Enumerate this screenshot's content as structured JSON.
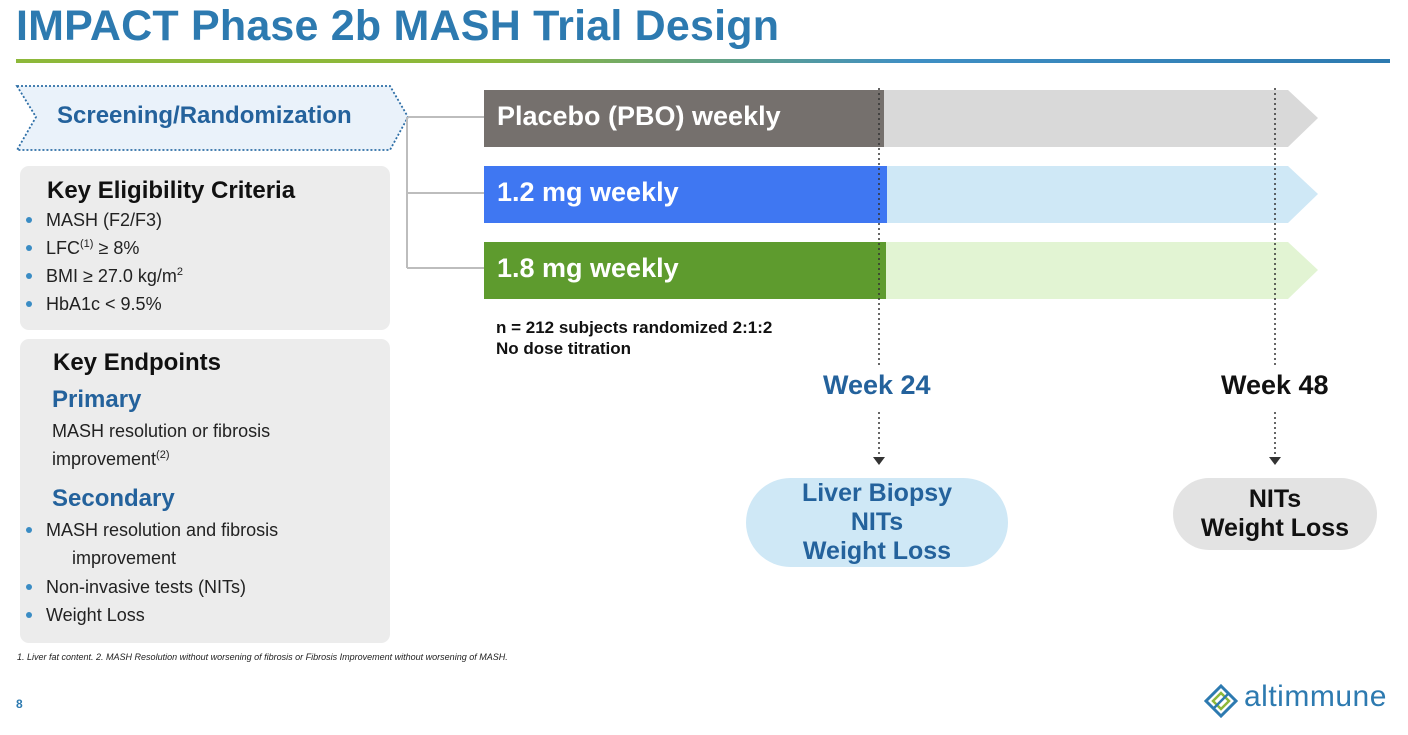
{
  "title": "IMPACT Phase 2b MASH Trial Design",
  "screening": {
    "label": "Screening/Randomization"
  },
  "eligibility": {
    "heading": "Key Eligibility Criteria",
    "items": [
      "MASH (F2/F3)",
      "LFC",
      "≥ 8%",
      "BMI ≥ 27.0 kg/m",
      "HbA1c < 9.5%"
    ],
    "lfc_sup": "(1)",
    "bmi_sup": "2"
  },
  "endpoints": {
    "heading": "Key Endpoints",
    "primary_heading": "Primary",
    "primary_text_1": "MASH resolution or fibrosis",
    "primary_text_2": "improvement",
    "primary_sup": "(2)",
    "secondary_heading": "Secondary",
    "secondary_items": [
      "MASH resolution and fibrosis",
      "improvement",
      "Non-invasive tests (NITs)",
      "Weight Loss"
    ]
  },
  "arms": [
    {
      "label": "Placebo (PBO) weekly",
      "color_solid": "#75706d",
      "color_light": "#d9d9d9"
    },
    {
      "label": "1.2 mg weekly",
      "color_solid": "#3f77f2",
      "color_light": "#cfe8f6"
    },
    {
      "label": "1.8 mg weekly",
      "color_solid": "#5e9b2e",
      "color_light": "#e2f4d3"
    }
  ],
  "notes": {
    "line1": "n = 212 subjects randomized 2:1:2",
    "line2": "No dose titration"
  },
  "weeks": {
    "w24": {
      "label": "Week 24",
      "color": "#24629c"
    },
    "w48": {
      "label": "Week 48",
      "color": "#111111"
    }
  },
  "outcomes": {
    "w24": [
      "Liver Biopsy",
      "NITs",
      "Weight Loss"
    ],
    "w48": [
      "NITs",
      "Weight Loss"
    ]
  },
  "footnote": "1. Liver fat content. 2. MASH Resolution without worsening of fibrosis or Fibrosis Improvement without worsening of MASH.",
  "page_number": "8",
  "logo": {
    "text": "altimmune",
    "icon": "altimmune-logo-icon"
  }
}
